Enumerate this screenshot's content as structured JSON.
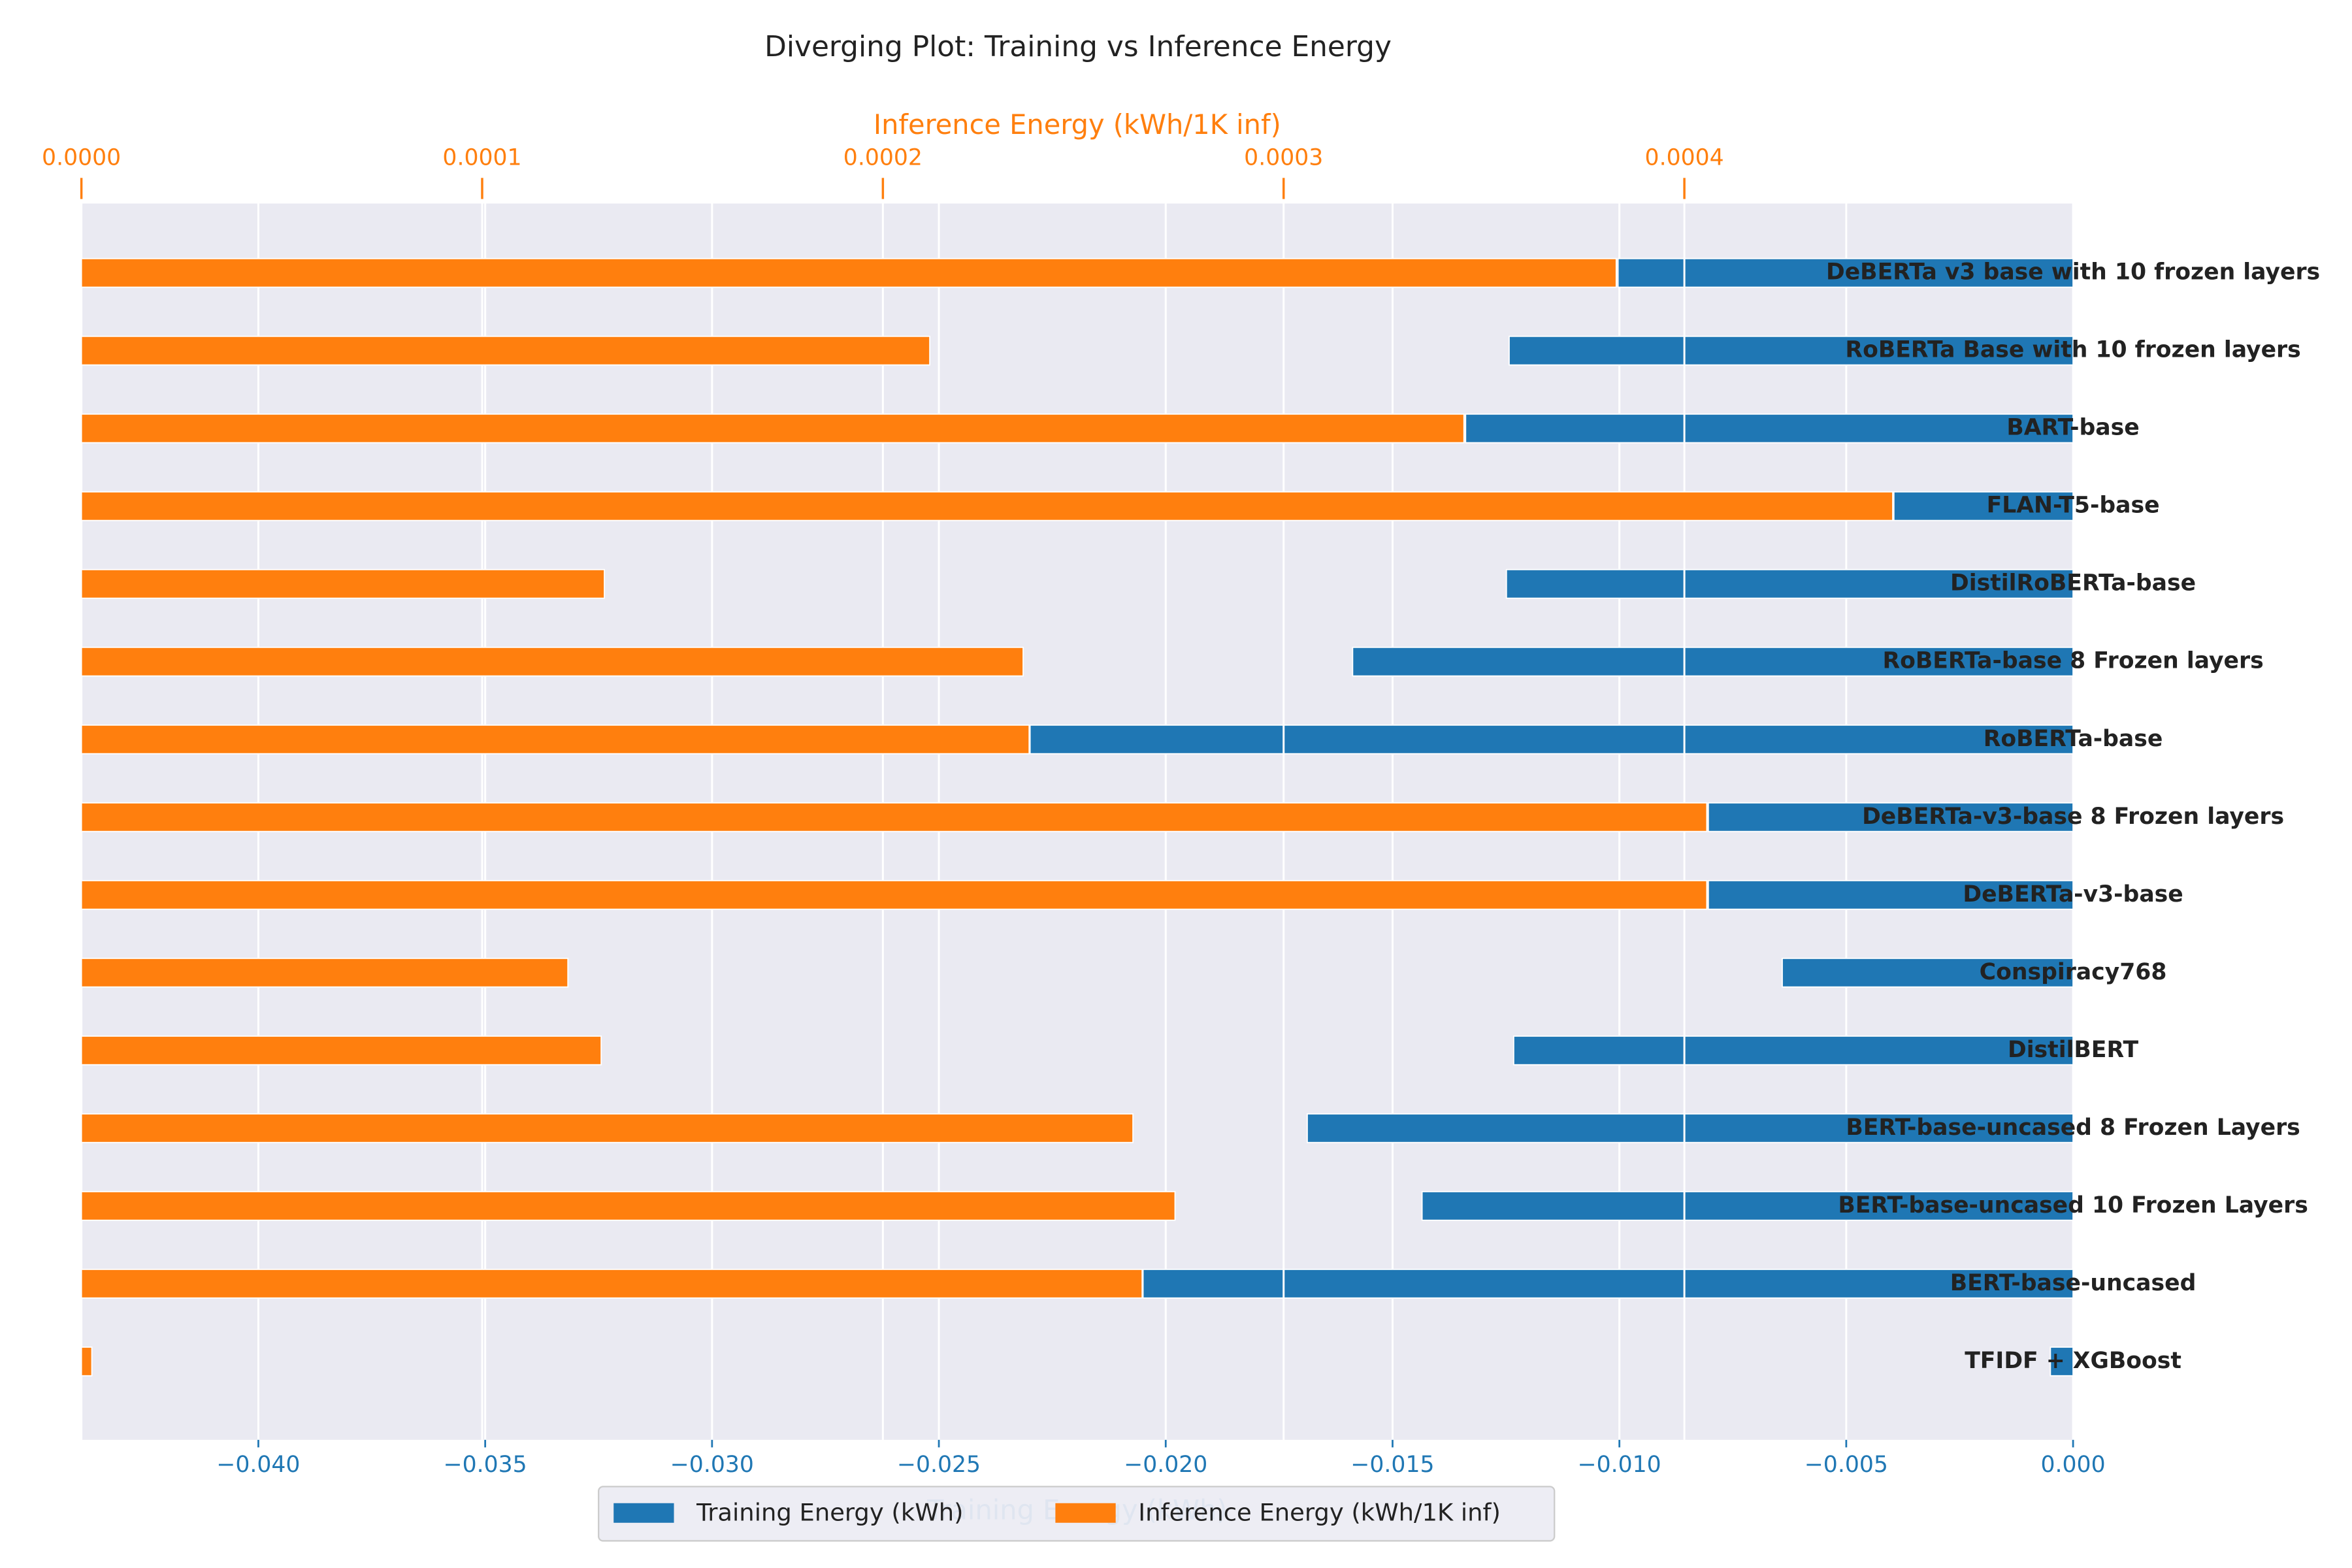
{
  "chart_data": {
    "type": "diverging_bar",
    "title": "Diverging Plot: Training vs Inference Energy",
    "xlabel": "Training Energy (kWh)",
    "x2label": "Inference Energy (kWh/1K inf)",
    "categories": [
      "DeBERTa v3 base with 10 frozen layers",
      "RoBERTa Base with 10 frozen layers",
      "BART-base",
      "FLAN-T5-base",
      "DistilRoBERTa-base",
      "RoBERTa-base 8 Frozen layers",
      "RoBERTa-base",
      "DeBERTa-v3-base 8 Frozen layers",
      "DeBERTa-v3-base",
      "Conspiracy768",
      "DistilBERT",
      "BERT-base-uncased 8 Frozen Layers",
      "BERT-base-uncased 10 Frozen Layers",
      "BERT-base-uncased",
      "TFIDF + XGBoost"
    ],
    "series": [
      {
        "name": "Training Energy (kWh)",
        "color": "#1f77b4",
        "axis": "x",
        "values": [
          -0.01003,
          -0.01243,
          -0.01339,
          -0.00395,
          -0.01249,
          -0.01588,
          -0.02299,
          -0.00804,
          -0.00804,
          -0.00641,
          -0.01233,
          -0.01688,
          -0.01435,
          -0.0205,
          -0.0005
        ]
      },
      {
        "name": "Inference Energy (kWh/1K inf)",
        "color": "#ff7f0e",
        "axis": "x2",
        "values": [
          0.000383,
          0.0002117,
          0.000345,
          0.000452,
          0.0001305,
          0.000235,
          0.0002365,
          0.0004056,
          0.0004056,
          0.0001214,
          0.0001297,
          0.0002624,
          0.0002729,
          0.0002647,
          2.6e-06
        ]
      }
    ],
    "xlim": [
      -0.0439,
      0
    ],
    "xticks": [
      {
        "value": -0.04,
        "label": "−0.040"
      },
      {
        "value": -0.035,
        "label": "−0.035"
      },
      {
        "value": -0.03,
        "label": "−0.030"
      },
      {
        "value": -0.025,
        "label": "−0.025"
      },
      {
        "value": -0.02,
        "label": "−0.020"
      },
      {
        "value": -0.015,
        "label": "−0.015"
      },
      {
        "value": -0.01,
        "label": "−0.010"
      },
      {
        "value": -0.005,
        "label": "−0.005"
      },
      {
        "value": 0,
        "label": "0.000"
      }
    ],
    "x2lim": [
      0,
      0.000497
    ],
    "x2ticks": [
      {
        "value": 0,
        "label": "0.0000"
      },
      {
        "value": 0.0001,
        "label": "0.0001"
      },
      {
        "value": 0.0002,
        "label": "0.0002"
      },
      {
        "value": 0.0003,
        "label": "0.0003"
      },
      {
        "value": 0.0004,
        "label": "0.0004"
      }
    ],
    "grid": true,
    "legend": "lower center"
  }
}
